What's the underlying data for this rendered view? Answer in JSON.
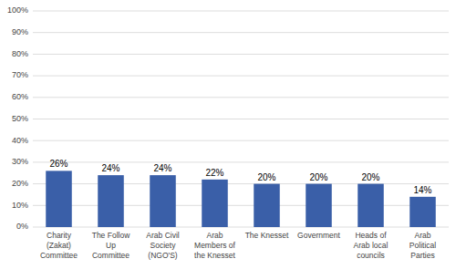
{
  "chart_data": {
    "type": "bar",
    "categories": [
      "Charity\n(Zakat)\nCommittee",
      "The Follow\nUp\nCommittee",
      "Arab Civil\nSociety\n(NGO'S)",
      "Arab\nMembers of\nthe Knesset",
      "The Knesset",
      "Government",
      "Heads of\nArab local\ncouncils",
      "Arab\nPolitical\nParties"
    ],
    "values": [
      26,
      24,
      24,
      22,
      20,
      20,
      20,
      14
    ],
    "value_labels": [
      "26%",
      "24%",
      "24%",
      "22%",
      "20%",
      "20%",
      "20%",
      "14%"
    ],
    "color": "#3a5fa8",
    "ylim": [
      0,
      100
    ],
    "yticks": [
      {
        "value": 0,
        "label": "0%"
      },
      {
        "value": 10,
        "label": "10%"
      },
      {
        "value": 20,
        "label": "20%"
      },
      {
        "value": 30,
        "label": "30%"
      },
      {
        "value": 40,
        "label": "40%"
      },
      {
        "value": 50,
        "label": "50%"
      },
      {
        "value": 60,
        "label": "60%"
      },
      {
        "value": 70,
        "label": "70%"
      },
      {
        "value": 80,
        "label": "80%"
      },
      {
        "value": 90,
        "label": "90%"
      },
      {
        "value": 100,
        "label": "100%"
      }
    ],
    "grid": true,
    "data_labels": true
  }
}
